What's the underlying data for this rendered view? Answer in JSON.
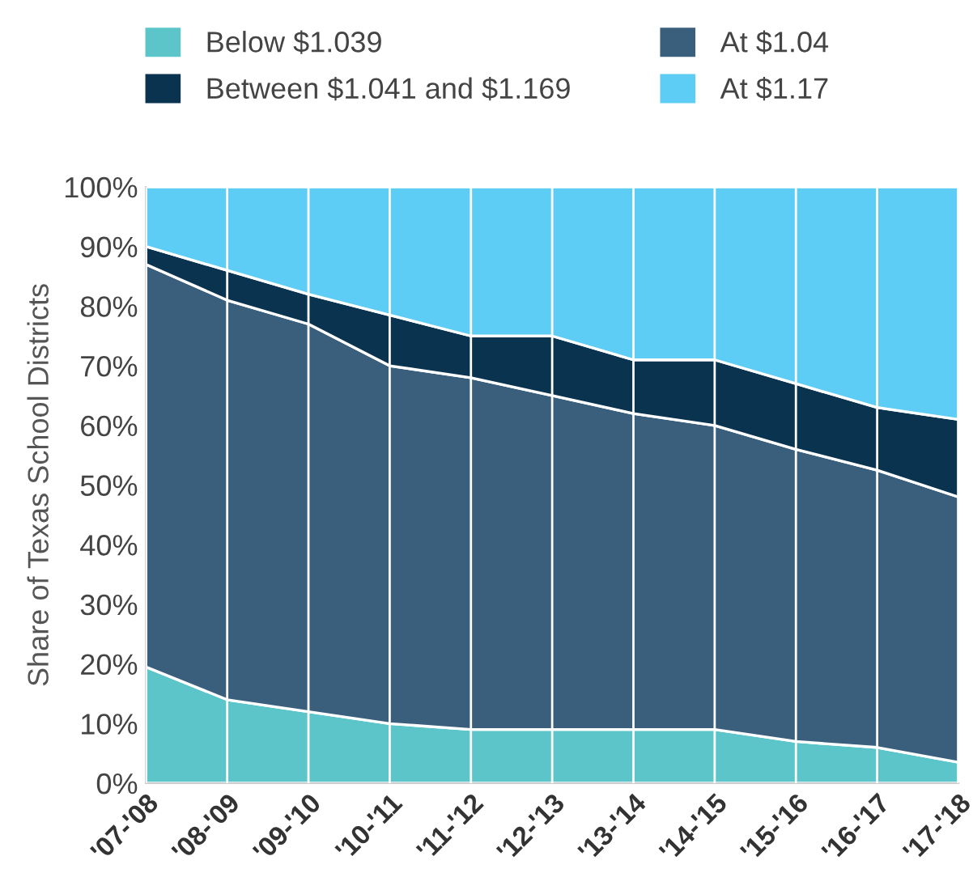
{
  "chart_data": {
    "type": "area",
    "stacked": true,
    "ylabel": "Share of Texas School Districts",
    "categories": [
      "'07-'08",
      "'08-'09",
      "'09-'10",
      "'10-'11",
      "'11-'12",
      "'12-'13",
      "'13-'14",
      "'14-'15",
      "'15-'16",
      "'16-'17",
      "'17-'18"
    ],
    "series": [
      {
        "name": "Below $1.039",
        "color": "#5bc5c9",
        "values": [
          19.5,
          14,
          12,
          10,
          9,
          9,
          9,
          9,
          7,
          6,
          3.5
        ]
      },
      {
        "name": "At $1.04",
        "color": "#3a5f7d",
        "values": [
          67.5,
          67,
          65,
          60,
          59,
          56,
          53,
          51,
          49,
          46.5,
          44.5
        ]
      },
      {
        "name": "Between $1.041 and $1.169",
        "color": "#0a3350",
        "values": [
          3,
          5,
          5,
          8.5,
          7,
          10,
          9,
          11,
          11,
          10.5,
          13
        ]
      },
      {
        "name": "At $1.17",
        "color": "#5ecdf5",
        "values": [
          10,
          14,
          18,
          21.5,
          25,
          25,
          29,
          29,
          33,
          37,
          39
        ]
      }
    ],
    "ylim": [
      0,
      100
    ],
    "yticks": [
      {
        "value": 0,
        "label": "0%"
      },
      {
        "value": 10,
        "label": "10%"
      },
      {
        "value": 20,
        "label": "20%"
      },
      {
        "value": 30,
        "label": "30%"
      },
      {
        "value": 40,
        "label": "40%"
      },
      {
        "value": 50,
        "label": "50%"
      },
      {
        "value": 60,
        "label": "60%"
      },
      {
        "value": 70,
        "label": "70%"
      },
      {
        "value": 80,
        "label": "80%"
      },
      {
        "value": 90,
        "label": "90%"
      },
      {
        "value": 100,
        "label": "100%"
      }
    ],
    "grid": "x",
    "legend": "top"
  }
}
